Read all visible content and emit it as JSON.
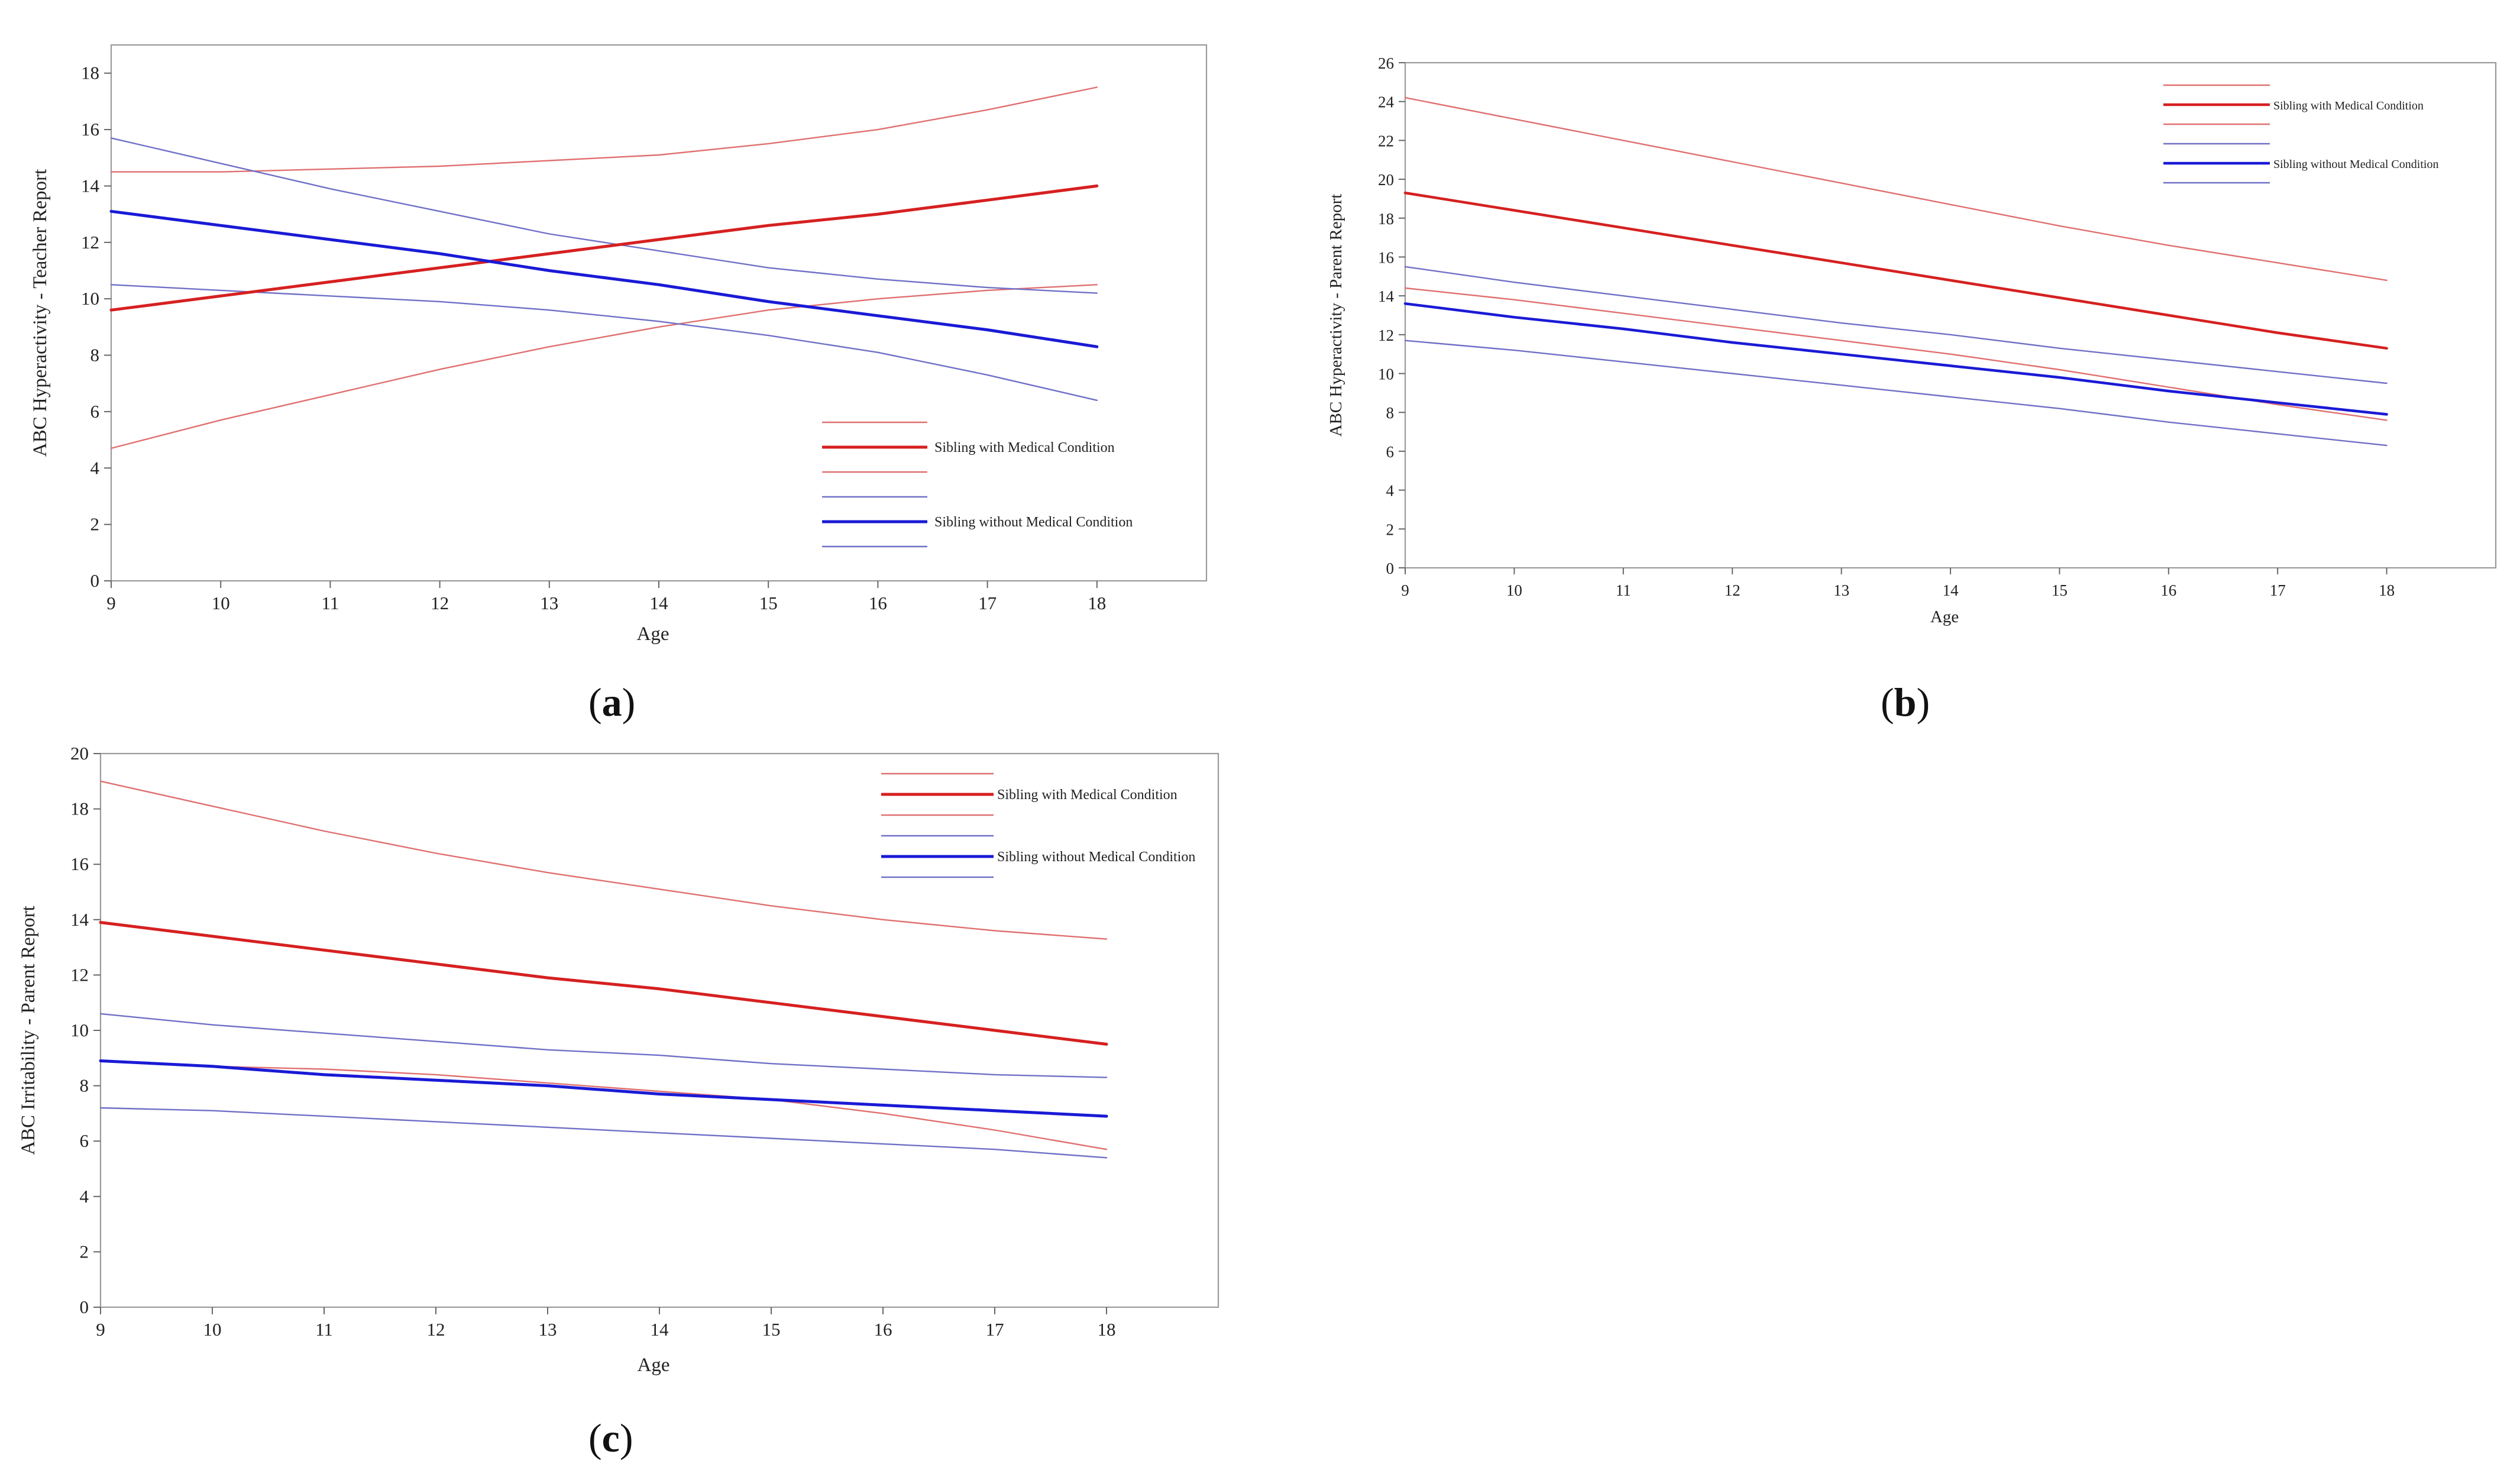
{
  "chart_data": [
    {
      "id": "a",
      "type": "line",
      "caption_letter": "a",
      "title": "",
      "xlabel": "Age",
      "ylabel": "ABC Hyperactivity - Teacher Report",
      "xlim": [
        9,
        19
      ],
      "ylim": [
        0,
        19
      ],
      "xticks": [
        9,
        10,
        11,
        12,
        13,
        14,
        15,
        16,
        17,
        18
      ],
      "yticks": [
        0,
        2,
        4,
        6,
        8,
        10,
        12,
        14,
        16,
        18
      ],
      "x": [
        9,
        10,
        11,
        12,
        13,
        14,
        15,
        16,
        17,
        18
      ],
      "series": [
        {
          "name": "",
          "role": "upper",
          "group": "with",
          "color": "#e07070",
          "values": [
            14.5,
            14.5,
            14.6,
            14.7,
            14.9,
            15.1,
            15.5,
            16.0,
            16.7,
            17.5
          ]
        },
        {
          "name": "Sibling with Medical Condition",
          "role": "mean",
          "group": "with",
          "color": "#d62020",
          "values": [
            9.6,
            10.1,
            10.6,
            11.1,
            11.6,
            12.1,
            12.6,
            13.0,
            13.5,
            14.0
          ]
        },
        {
          "name": "",
          "role": "lower",
          "group": "with",
          "color": "#e07070",
          "values": [
            4.7,
            5.7,
            6.6,
            7.5,
            8.3,
            9.0,
            9.6,
            10.0,
            10.3,
            10.5
          ]
        },
        {
          "name": "",
          "role": "upper",
          "group": "without",
          "color": "#7070c8",
          "values": [
            15.7,
            14.8,
            13.9,
            13.1,
            12.3,
            11.7,
            11.1,
            10.7,
            10.4,
            10.2
          ]
        },
        {
          "name": "Sibling without Medical Condition",
          "role": "mean",
          "group": "without",
          "color": "#1a1ad6",
          "values": [
            13.1,
            12.6,
            12.1,
            11.6,
            11.0,
            10.5,
            9.9,
            9.4,
            8.9,
            8.3
          ]
        },
        {
          "name": "",
          "role": "lower",
          "group": "without",
          "color": "#7070c8",
          "values": [
            10.5,
            10.3,
            10.1,
            9.9,
            9.6,
            9.2,
            8.7,
            8.1,
            7.3,
            6.4
          ]
        }
      ]
    },
    {
      "id": "b",
      "type": "line",
      "caption_letter": "b",
      "title": "",
      "xlabel": "Age",
      "ylabel": "ABC Hyperactivity - Parent Report",
      "xlim": [
        9,
        19
      ],
      "ylim": [
        0,
        26
      ],
      "xticks": [
        9,
        10,
        11,
        12,
        13,
        14,
        15,
        16,
        17,
        18
      ],
      "yticks": [
        0,
        2,
        4,
        6,
        8,
        10,
        12,
        14,
        16,
        18,
        20,
        22,
        24,
        26
      ],
      "x": [
        9,
        10,
        11,
        12,
        13,
        14,
        15,
        16,
        17,
        18
      ],
      "series": [
        {
          "name": "",
          "role": "upper",
          "group": "with",
          "color": "#e07070",
          "values": [
            24.2,
            23.1,
            22.0,
            20.9,
            19.8,
            18.7,
            17.6,
            16.6,
            15.7,
            14.8
          ]
        },
        {
          "name": "Sibling with Medical Condition",
          "role": "mean",
          "group": "with",
          "color": "#d62020",
          "values": [
            19.3,
            18.4,
            17.5,
            16.6,
            15.7,
            14.8,
            13.9,
            13.0,
            12.1,
            11.3
          ]
        },
        {
          "name": "",
          "role": "lower",
          "group": "with",
          "color": "#e07070",
          "values": [
            14.4,
            13.8,
            13.1,
            12.4,
            11.7,
            11.0,
            10.2,
            9.3,
            8.4,
            7.6
          ]
        },
        {
          "name": "",
          "role": "upper",
          "group": "without",
          "color": "#7070c8",
          "values": [
            15.5,
            14.7,
            14.0,
            13.3,
            12.6,
            12.0,
            11.3,
            10.7,
            10.1,
            9.5
          ]
        },
        {
          "name": "Sibling without Medical Condition",
          "role": "mean",
          "group": "without",
          "color": "#1a1ad6",
          "values": [
            13.6,
            12.9,
            12.3,
            11.6,
            11.0,
            10.4,
            9.8,
            9.1,
            8.5,
            7.9
          ]
        },
        {
          "name": "",
          "role": "lower",
          "group": "without",
          "color": "#7070c8",
          "values": [
            11.7,
            11.2,
            10.6,
            10.0,
            9.4,
            8.8,
            8.2,
            7.5,
            6.9,
            6.3
          ]
        }
      ]
    },
    {
      "id": "c",
      "type": "line",
      "caption_letter": "c",
      "title": "",
      "xlabel": "Age",
      "ylabel": "ABC Irritability - Parent Report",
      "xlim": [
        9,
        19
      ],
      "ylim": [
        0,
        20
      ],
      "xticks": [
        9,
        10,
        11,
        12,
        13,
        14,
        15,
        16,
        17,
        18
      ],
      "yticks": [
        0,
        2,
        4,
        6,
        8,
        10,
        12,
        14,
        16,
        18,
        20
      ],
      "x": [
        9,
        10,
        11,
        12,
        13,
        14,
        15,
        16,
        17,
        18
      ],
      "series": [
        {
          "name": "",
          "role": "upper",
          "group": "with",
          "color": "#e07070",
          "values": [
            19.0,
            18.1,
            17.2,
            16.4,
            15.7,
            15.1,
            14.5,
            14.0,
            13.6,
            13.3
          ]
        },
        {
          "name": "Sibling with Medical Condition",
          "role": "mean",
          "group": "with",
          "color": "#d62020",
          "values": [
            13.9,
            13.4,
            12.9,
            12.4,
            11.9,
            11.5,
            11.0,
            10.5,
            10.0,
            9.5
          ]
        },
        {
          "name": "",
          "role": "lower",
          "group": "with",
          "color": "#e07070",
          "values": [
            8.9,
            8.7,
            8.6,
            8.4,
            8.1,
            7.8,
            7.5,
            7.0,
            6.4,
            5.7
          ]
        },
        {
          "name": "",
          "role": "upper",
          "group": "without",
          "color": "#7070c8",
          "values": [
            10.6,
            10.2,
            9.9,
            9.6,
            9.3,
            9.1,
            8.8,
            8.6,
            8.4,
            8.3
          ]
        },
        {
          "name": "Sibling without Medical Condition",
          "role": "mean",
          "group": "without",
          "color": "#1a1ad6",
          "values": [
            8.9,
            8.7,
            8.4,
            8.2,
            8.0,
            7.7,
            7.5,
            7.3,
            7.1,
            6.9
          ]
        },
        {
          "name": "",
          "role": "lower",
          "group": "without",
          "color": "#7070c8",
          "values": [
            7.2,
            7.1,
            6.9,
            6.7,
            6.5,
            6.3,
            6.1,
            5.9,
            5.7,
            5.4
          ]
        }
      ]
    }
  ]
}
